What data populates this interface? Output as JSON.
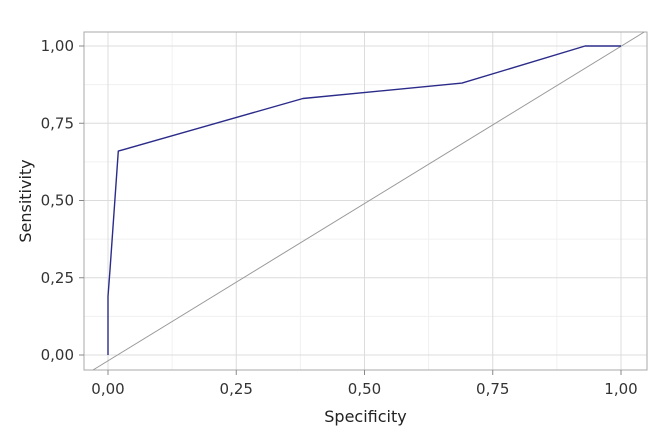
{
  "chart_data": {
    "type": "line",
    "title": "",
    "xlabel": "Specificity",
    "ylabel": "Sensitivity",
    "xlim": [
      0,
      1
    ],
    "ylim": [
      0,
      1
    ],
    "x_ticks": [
      "0,00",
      "0,25",
      "0,50",
      "0,75",
      "1,00"
    ],
    "y_ticks": [
      "0,00",
      "0,25",
      "0,50",
      "0,75",
      "1,00"
    ],
    "grid": true,
    "legend": false,
    "series": [
      {
        "color": "#2b2b8a",
        "x": [
          0.0,
          0.0,
          0.004,
          0.02,
          0.38,
          0.69,
          0.93,
          1.0
        ],
        "y": [
          0.0,
          0.19,
          0.28,
          0.66,
          0.83,
          0.88,
          1.0,
          1.0
        ]
      }
    ],
    "reference_line": {
      "color": "#999999",
      "x": [
        0,
        1
      ],
      "y": [
        0,
        1
      ]
    }
  }
}
